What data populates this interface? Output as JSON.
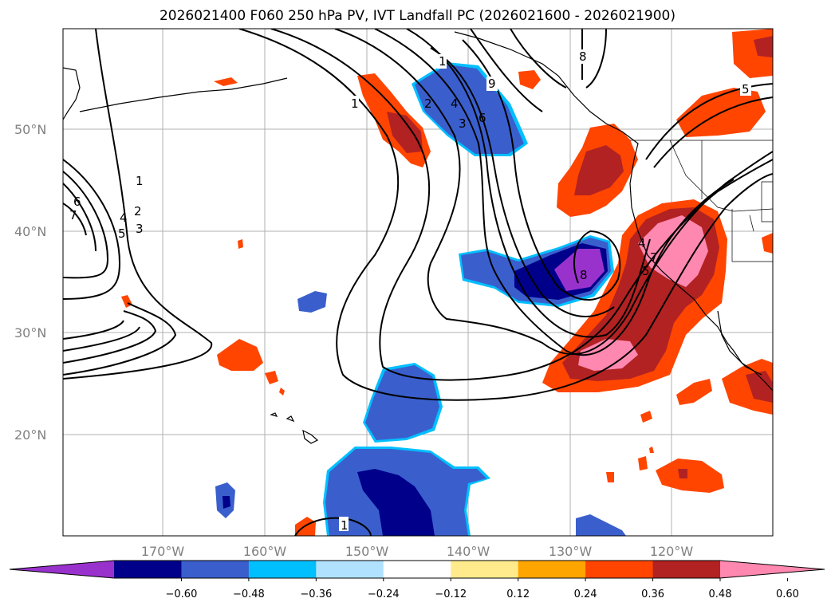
{
  "title": "2026021400 F060 250 hPa PV, IVT Landfall PC (2026021600 - 2026021900)",
  "map": {
    "lat_labels": [
      "50°N",
      "40°N",
      "30°N",
      "20°N"
    ],
    "lon_labels": [
      "170°W",
      "160°W",
      "150°W",
      "140°W",
      "130°W",
      "120°W"
    ],
    "contour_labels": [
      "1",
      "1",
      "1",
      "1",
      "2",
      "4",
      "3",
      "6",
      "9",
      "8",
      "5",
      "6",
      "7",
      "1",
      "2",
      "3",
      "4",
      "5",
      "8",
      "4",
      "5",
      "7"
    ]
  },
  "colorbar": {
    "colors": [
      "#9932cc",
      "#00008b",
      "#3a5fcd",
      "#00bfff",
      "#b0e2ff",
      "#ffffff",
      "#ffeb8c",
      "#ffa500",
      "#ff4500",
      "#b22222",
      "#ff88b0"
    ],
    "labels": [
      "−0.60",
      "−0.48",
      "−0.36",
      "−0.24",
      "−0.12",
      "0.12",
      "0.24",
      "0.36",
      "0.48",
      "0.60"
    ]
  }
}
